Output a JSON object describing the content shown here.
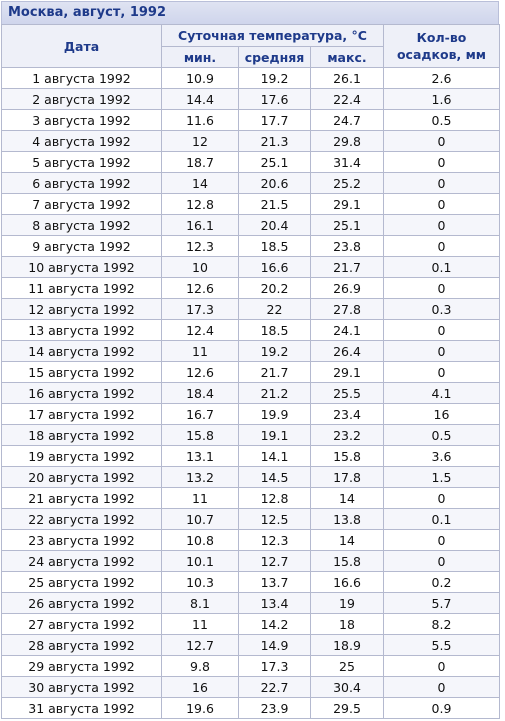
{
  "caption": "Москва, август, 1992",
  "headers": {
    "date": "Дата",
    "temp_group": "Суточная температура, °С",
    "min": "мин.",
    "avg": "средняя",
    "max": "макс.",
    "precip_line1": "Кол-во",
    "precip_line2": "осадков, мм"
  },
  "rows": [
    {
      "date": "1 августа 1992",
      "min": "10.9",
      "avg": "19.2",
      "max": "26.1",
      "precip": "2.6"
    },
    {
      "date": "2 августа 1992",
      "min": "14.4",
      "avg": "17.6",
      "max": "22.4",
      "precip": "1.6"
    },
    {
      "date": "3 августа 1992",
      "min": "11.6",
      "avg": "17.7",
      "max": "24.7",
      "precip": "0.5"
    },
    {
      "date": "4 августа 1992",
      "min": "12",
      "avg": "21.3",
      "max": "29.8",
      "precip": "0"
    },
    {
      "date": "5 августа 1992",
      "min": "18.7",
      "avg": "25.1",
      "max": "31.4",
      "precip": "0"
    },
    {
      "date": "6 августа 1992",
      "min": "14",
      "avg": "20.6",
      "max": "25.2",
      "precip": "0"
    },
    {
      "date": "7 августа 1992",
      "min": "12.8",
      "avg": "21.5",
      "max": "29.1",
      "precip": "0"
    },
    {
      "date": "8 августа 1992",
      "min": "16.1",
      "avg": "20.4",
      "max": "25.1",
      "precip": "0"
    },
    {
      "date": "9 августа 1992",
      "min": "12.3",
      "avg": "18.5",
      "max": "23.8",
      "precip": "0"
    },
    {
      "date": "10 августа 1992",
      "min": "10",
      "avg": "16.6",
      "max": "21.7",
      "precip": "0.1"
    },
    {
      "date": "11 августа 1992",
      "min": "12.6",
      "avg": "20.2",
      "max": "26.9",
      "precip": "0"
    },
    {
      "date": "12 августа 1992",
      "min": "17.3",
      "avg": "22",
      "max": "27.8",
      "precip": "0.3"
    },
    {
      "date": "13 августа 1992",
      "min": "12.4",
      "avg": "18.5",
      "max": "24.1",
      "precip": "0"
    },
    {
      "date": "14 августа 1992",
      "min": "11",
      "avg": "19.2",
      "max": "26.4",
      "precip": "0"
    },
    {
      "date": "15 августа 1992",
      "min": "12.6",
      "avg": "21.7",
      "max": "29.1",
      "precip": "0"
    },
    {
      "date": "16 августа 1992",
      "min": "18.4",
      "avg": "21.2",
      "max": "25.5",
      "precip": "4.1"
    },
    {
      "date": "17 августа 1992",
      "min": "16.7",
      "avg": "19.9",
      "max": "23.4",
      "precip": "16"
    },
    {
      "date": "18 августа 1992",
      "min": "15.8",
      "avg": "19.1",
      "max": "23.2",
      "precip": "0.5"
    },
    {
      "date": "19 августа 1992",
      "min": "13.1",
      "avg": "14.1",
      "max": "15.8",
      "precip": "3.6"
    },
    {
      "date": "20 августа 1992",
      "min": "13.2",
      "avg": "14.5",
      "max": "17.8",
      "precip": "1.5"
    },
    {
      "date": "21 августа 1992",
      "min": "11",
      "avg": "12.8",
      "max": "14",
      "precip": "0"
    },
    {
      "date": "22 августа 1992",
      "min": "10.7",
      "avg": "12.5",
      "max": "13.8",
      "precip": "0.1"
    },
    {
      "date": "23 августа 1992",
      "min": "10.8",
      "avg": "12.3",
      "max": "14",
      "precip": "0"
    },
    {
      "date": "24 августа 1992",
      "min": "10.1",
      "avg": "12.7",
      "max": "15.8",
      "precip": "0"
    },
    {
      "date": "25 августа 1992",
      "min": "10.3",
      "avg": "13.7",
      "max": "16.6",
      "precip": "0.2"
    },
    {
      "date": "26 августа 1992",
      "min": "8.1",
      "avg": "13.4",
      "max": "19",
      "precip": "5.7"
    },
    {
      "date": "27 августа 1992",
      "min": "11",
      "avg": "14.2",
      "max": "18",
      "precip": "8.2"
    },
    {
      "date": "28 августа 1992",
      "min": "12.7",
      "avg": "14.9",
      "max": "18.9",
      "precip": "5.5"
    },
    {
      "date": "29 августа 1992",
      "min": "9.8",
      "avg": "17.3",
      "max": "25",
      "precip": "0"
    },
    {
      "date": "30 августа 1992",
      "min": "16",
      "avg": "22.7",
      "max": "30.4",
      "precip": "0"
    },
    {
      "date": "31 августа 1992",
      "min": "19.6",
      "avg": "23.9",
      "max": "29.5",
      "precip": "0.9"
    }
  ]
}
